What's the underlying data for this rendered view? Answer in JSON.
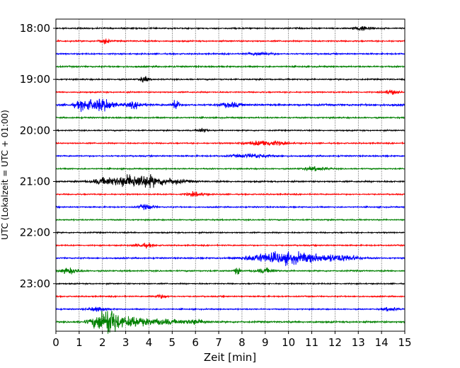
{
  "chart_data": {
    "type": "line",
    "title": "",
    "xlabel": "Zeit  [min]",
    "ylabel": "UTC (Lokalzeit = UTC + 01:00)",
    "xlim": [
      0,
      15
    ],
    "x_ticks": [
      "0",
      "1",
      "2",
      "3",
      "4",
      "5",
      "6",
      "7",
      "8",
      "9",
      "10",
      "11",
      "12",
      "13",
      "14",
      "15"
    ],
    "y_tick_labels": [
      "18:00",
      "19:00",
      "20:00",
      "21:00",
      "22:00",
      "23:00"
    ],
    "grid": {
      "vertical": true,
      "horizontal": false
    },
    "trace_interval_minutes": 15,
    "series": [
      {
        "start": "18:00",
        "color": "#000000",
        "amplitude": 0.5,
        "events": [
          {
            "t": 13.2,
            "amp": 0.8,
            "dur": 0.4
          }
        ]
      },
      {
        "start": "18:15",
        "color": "#ff0000",
        "amplitude": 0.5,
        "events": [
          {
            "t": 2.1,
            "amp": 1.0,
            "dur": 0.2
          }
        ]
      },
      {
        "start": "18:30",
        "color": "#0000ff",
        "amplitude": 0.5,
        "events": [
          {
            "t": 8.8,
            "amp": 0.6,
            "dur": 0.5
          }
        ]
      },
      {
        "start": "18:45",
        "color": "#008000",
        "amplitude": 0.55,
        "events": []
      },
      {
        "start": "19:00",
        "color": "#000000",
        "amplitude": 0.5,
        "events": [
          {
            "t": 3.8,
            "amp": 1.0,
            "dur": 0.2
          }
        ]
      },
      {
        "start": "19:15",
        "color": "#ff0000",
        "amplitude": 0.45,
        "events": [
          {
            "t": 14.4,
            "amp": 0.8,
            "dur": 0.3
          }
        ]
      },
      {
        "start": "19:30",
        "color": "#0000ff",
        "amplitude": 0.7,
        "events": [
          {
            "t": 1.2,
            "amp": 1.6,
            "dur": 0.4
          },
          {
            "t": 2.0,
            "amp": 2.2,
            "dur": 0.5
          },
          {
            "t": 3.4,
            "amp": 1.0,
            "dur": 0.4
          },
          {
            "t": 5.15,
            "amp": 3.0,
            "dur": 0.12
          },
          {
            "t": 7.5,
            "amp": 0.9,
            "dur": 0.4
          }
        ]
      },
      {
        "start": "19:45",
        "color": "#008000",
        "amplitude": 0.5,
        "events": []
      },
      {
        "start": "20:00",
        "color": "#000000",
        "amplitude": 0.45,
        "events": [
          {
            "t": 6.3,
            "amp": 0.8,
            "dur": 0.2
          }
        ]
      },
      {
        "start": "20:15",
        "color": "#ff0000",
        "amplitude": 0.45,
        "events": [
          {
            "t": 9.0,
            "amp": 1.0,
            "dur": 0.8
          }
        ]
      },
      {
        "start": "20:30",
        "color": "#0000ff",
        "amplitude": 0.5,
        "events": [
          {
            "t": 8.5,
            "amp": 0.7,
            "dur": 0.8
          }
        ]
      },
      {
        "start": "20:45",
        "color": "#008000",
        "amplitude": 0.45,
        "events": [
          {
            "t": 11.2,
            "amp": 0.7,
            "dur": 0.5
          }
        ]
      },
      {
        "start": "21:00",
        "color": "#000000",
        "amplitude": 0.55,
        "events": [
          {
            "t": 2.2,
            "amp": 1.3,
            "dur": 0.6
          },
          {
            "t": 3.1,
            "amp": 1.6,
            "dur": 0.5
          },
          {
            "t": 3.8,
            "amp": 1.9,
            "dur": 0.6
          },
          {
            "t": 4.8,
            "amp": 1.0,
            "dur": 0.8
          }
        ]
      },
      {
        "start": "21:15",
        "color": "#ff0000",
        "amplitude": 0.45,
        "events": [
          {
            "t": 6.0,
            "amp": 0.7,
            "dur": 0.4
          }
        ]
      },
      {
        "start": "21:30",
        "color": "#0000ff",
        "amplitude": 0.45,
        "events": [
          {
            "t": 3.9,
            "amp": 0.9,
            "dur": 0.3
          }
        ]
      },
      {
        "start": "21:45",
        "color": "#008000",
        "amplitude": 0.45,
        "events": []
      },
      {
        "start": "22:00",
        "color": "#000000",
        "amplitude": 0.45,
        "events": []
      },
      {
        "start": "22:15",
        "color": "#ff0000",
        "amplitude": 0.45,
        "events": [
          {
            "t": 3.8,
            "amp": 0.7,
            "dur": 0.4
          }
        ]
      },
      {
        "start": "22:30",
        "color": "#0000ff",
        "amplitude": 0.5,
        "events": [
          {
            "t": 8.7,
            "amp": 1.1,
            "dur": 0.7
          },
          {
            "t": 9.9,
            "amp": 1.9,
            "dur": 0.9
          },
          {
            "t": 11.3,
            "amp": 1.2,
            "dur": 0.9
          },
          {
            "t": 12.5,
            "amp": 0.9,
            "dur": 0.6
          }
        ]
      },
      {
        "start": "22:45",
        "color": "#008000",
        "amplitude": 0.5,
        "events": [
          {
            "t": 0.6,
            "amp": 1.0,
            "dur": 0.4
          },
          {
            "t": 7.8,
            "amp": 1.6,
            "dur": 0.1
          },
          {
            "t": 9.0,
            "amp": 0.8,
            "dur": 0.4
          }
        ]
      },
      {
        "start": "23:00",
        "color": "#000000",
        "amplitude": 0.45,
        "events": []
      },
      {
        "start": "23:15",
        "color": "#ff0000",
        "amplitude": 0.45,
        "events": [
          {
            "t": 4.5,
            "amp": 0.6,
            "dur": 0.3
          }
        ]
      },
      {
        "start": "23:30",
        "color": "#0000ff",
        "amplitude": 0.45,
        "events": [
          {
            "t": 1.8,
            "amp": 0.8,
            "dur": 0.4
          },
          {
            "t": 14.4,
            "amp": 0.8,
            "dur": 0.3
          }
        ]
      },
      {
        "start": "23:45",
        "color": "#008000",
        "amplitude": 0.6,
        "events": [
          {
            "t": 2.0,
            "amp": 3.0,
            "dur": 0.5
          },
          {
            "t": 2.4,
            "amp": 3.5,
            "dur": 0.35
          },
          {
            "t": 3.3,
            "amp": 1.8,
            "dur": 0.5
          },
          {
            "t": 4.5,
            "amp": 1.0,
            "dur": 0.8
          },
          {
            "t": 6.0,
            "amp": 0.8,
            "dur": 0.5
          }
        ]
      }
    ]
  }
}
